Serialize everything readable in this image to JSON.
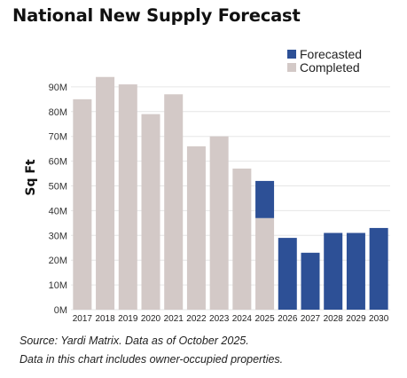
{
  "title": "National New Supply Forecast",
  "chart_data": {
    "type": "bar",
    "stacked": true,
    "categories": [
      "2017",
      "2018",
      "2019",
      "2020",
      "2021",
      "2022",
      "2023",
      "2024",
      "2025",
      "2026",
      "2027",
      "2028",
      "2029",
      "2030"
    ],
    "series": [
      {
        "name": "Completed",
        "color": "#d3c9c7",
        "values": [
          85,
          94,
          91,
          79,
          87,
          66,
          70,
          57,
          37,
          0,
          0,
          0,
          0,
          0
        ]
      },
      {
        "name": "Forecasted",
        "color": "#2d5096",
        "values": [
          0,
          0,
          0,
          0,
          0,
          0,
          0,
          0,
          15,
          29,
          23,
          31,
          31,
          33
        ]
      }
    ],
    "ylabel": "Sq Ft",
    "yticks": [
      "0M",
      "10M",
      "20M",
      "30M",
      "40M",
      "50M",
      "60M",
      "70M",
      "80M",
      "90M"
    ],
    "ytick_values": [
      0,
      10,
      20,
      30,
      40,
      50,
      60,
      70,
      80,
      90
    ],
    "ylim": [
      0,
      95
    ],
    "grid": true,
    "legend_position": "top-right",
    "legend_order": [
      "Forecasted",
      "Completed"
    ]
  },
  "footnotes": {
    "source": "Source: Yardi Matrix. Data as of October 2025.",
    "note": "Data in this chart includes owner-occupied properties."
  }
}
